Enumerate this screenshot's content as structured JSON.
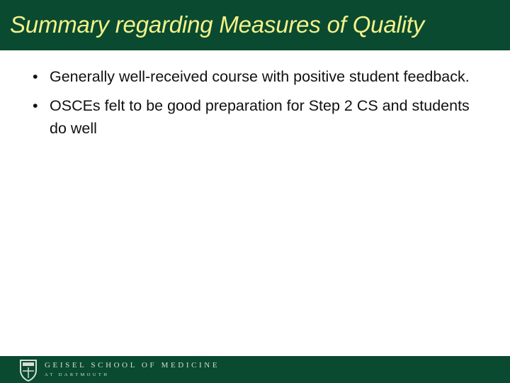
{
  "slide": {
    "title": "Summary regarding Measures of Quality",
    "bullets": [
      "Generally well-received course with positive student feedback.",
      "OSCEs felt to be good preparation for Step 2 CS and students do well"
    ],
    "bullet_glyph": "•"
  },
  "footer": {
    "logo_line1": "GEISEL SCHOOL OF MEDICINE",
    "logo_line2": "AT DARTMOUTH",
    "logo_icon": "shield-icon"
  },
  "colors": {
    "brand_green": "#0a4a30",
    "title_yellow": "#f3f28a"
  }
}
